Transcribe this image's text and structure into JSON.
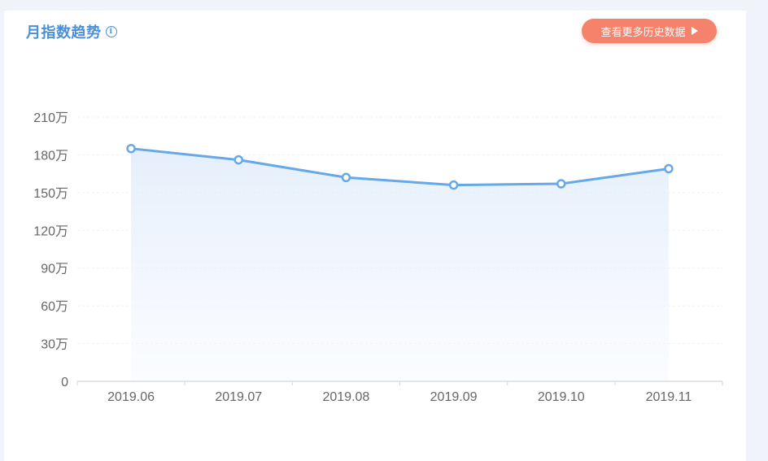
{
  "header": {
    "title": "月指数趋势",
    "info_icon": "info-circle-icon",
    "history_button_label": "查看更多历史数据",
    "history_button_icon": "play-triangle-icon"
  },
  "colors": {
    "accent": "#4a90d9",
    "line": "#66a8e8",
    "button": "#f5826a"
  },
  "chart_data": {
    "type": "line",
    "title": "",
    "xlabel": "",
    "ylabel": "",
    "categories": [
      "2019.06",
      "2019.07",
      "2019.08",
      "2019.09",
      "2019.10",
      "2019.11"
    ],
    "values": [
      1850000,
      1760000,
      1620000,
      1560000,
      1570000,
      1690000
    ],
    "y_ticks": [
      0,
      300000,
      600000,
      900000,
      1200000,
      1500000,
      1800000,
      2100000
    ],
    "y_tick_labels": [
      "0",
      "30万",
      "60万",
      "90万",
      "120万",
      "150万",
      "180万",
      "210万"
    ],
    "ylim": [
      0,
      2100000
    ],
    "grid": true,
    "area_fill": true,
    "markers": true
  }
}
